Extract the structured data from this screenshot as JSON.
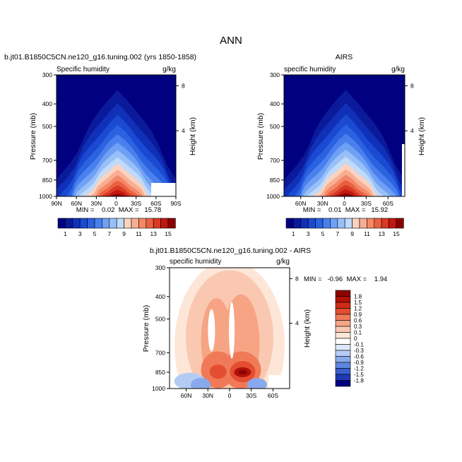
{
  "page_title": "ANN",
  "chart_data": [
    {
      "type": "heatmap",
      "title": "b.jt01.B1850C5CN.ne120_g16.tuning.002 (yrs 1850-1858)",
      "subtitle_left": "Specific humidity",
      "subtitle_right": "g/kg",
      "ylabel": "Pressure (mb)",
      "ylabel_right": "Height (km)",
      "y_ticks": [
        "300",
        "400",
        "500",
        "700",
        "850",
        "1000"
      ],
      "y_right_ticks": [
        "8",
        "4"
      ],
      "x_ticks": [
        "90N",
        "60N",
        "30N",
        "0",
        "30S",
        "60S",
        "90S"
      ],
      "stats_text": "MIN =    0.02  MAX =   15.78",
      "min": 0.02,
      "max": 15.78,
      "peak_value": 15.78,
      "peak_lat": 2,
      "peak_pressure": 1000,
      "colorbar_labels": [
        "1",
        "3",
        "5",
        "7",
        "9",
        "11",
        "13",
        "15"
      ],
      "levels": [
        1,
        2,
        3,
        4,
        5,
        6,
        7,
        8,
        9,
        10,
        11,
        12,
        13,
        14,
        15
      ]
    },
    {
      "type": "heatmap",
      "title": "AIRS",
      "subtitle_left": "specific humidity",
      "subtitle_right": "g/kg",
      "ylabel": "Pressure (mb)",
      "ylabel_right": "Height (km)",
      "y_ticks": [
        "300",
        "400",
        "500",
        "700",
        "850",
        "1000"
      ],
      "y_right_ticks": [
        "8",
        "4"
      ],
      "x_ticks": [
        "60N",
        "30N",
        "0",
        "30S",
        "60S"
      ],
      "stats_text": "MIN =    0.01  MAX =   15.92",
      "min": 0.01,
      "max": 15.92,
      "peak_value": 15.92,
      "peak_lat": 2,
      "peak_pressure": 1000,
      "colorbar_labels": [
        "1",
        "3",
        "5",
        "7",
        "9",
        "11",
        "13",
        "15"
      ],
      "levels": [
        1,
        2,
        3,
        4,
        5,
        6,
        7,
        8,
        9,
        10,
        11,
        12,
        13,
        14,
        15
      ]
    },
    {
      "type": "heatmap",
      "title": "b.jt01.B1850C5CN.ne120_g16.tuning.002 - AIRS",
      "subtitle_left": "specific humidity",
      "subtitle_right": "g/kg",
      "ylabel": "Pressure (mb)",
      "ylabel_right": "Height (km)",
      "y_ticks": [
        "300",
        "400",
        "500",
        "700",
        "850",
        "1000"
      ],
      "y_right_ticks": [
        "8",
        "4"
      ],
      "x_ticks": [
        "60N",
        "30N",
        "0",
        "30S",
        "60S"
      ],
      "stats_text": "MIN =   -0.96  MAX =    1.94",
      "min": -0.96,
      "max": 1.94,
      "colorbar_labels": [
        "1.8",
        "1.5",
        "1.2",
        "0.9",
        "0.6",
        "0.3",
        "0.1",
        "0",
        "-0.1",
        "-0.3",
        "-0.6",
        "-0.9",
        "-1.2",
        "-1.5",
        "-1.8"
      ]
    }
  ]
}
